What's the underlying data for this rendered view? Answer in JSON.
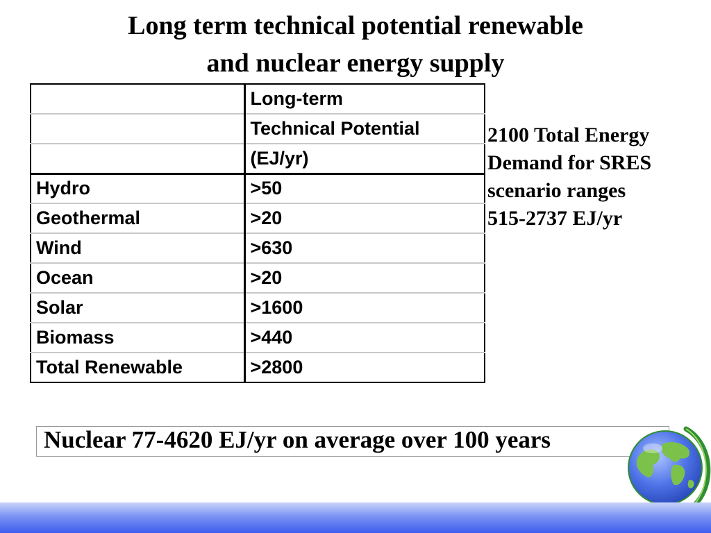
{
  "title": {
    "line1": "Long term technical potential renewable",
    "line2": "and nuclear energy supply"
  },
  "table": {
    "header_lines": [
      "Long-term",
      "Technical Potential",
      "(EJ/yr)"
    ],
    "rows": [
      {
        "source": "Hydro",
        "potential": ">50"
      },
      {
        "source": "Geothermal",
        "potential": ">20"
      },
      {
        "source": "Wind",
        "potential": ">630"
      },
      {
        "source": "Ocean",
        "potential": ">20"
      },
      {
        "source": "Solar",
        "potential": ">1600"
      },
      {
        "source": "Biomass",
        "potential": ">440"
      },
      {
        "source": "Total Renewable",
        "potential": ">2800"
      }
    ]
  },
  "side_note": {
    "lines": [
      "2100 Total Energy",
      "Demand for SRES",
      "scenario ranges",
      "515-2737 EJ/yr"
    ]
  },
  "nuclear_note": "Nuclear 77-4620 EJ/yr on average over 100 years",
  "colors": {
    "footer_gradient_top": "#c9d4fb",
    "footer_gradient_bottom": "#3d5ded",
    "globe_ocean": "#4f74e8",
    "globe_land": "#7cc24a",
    "globe_stand": "#2f8f2f"
  },
  "icons": {
    "globe": "globe-icon"
  }
}
